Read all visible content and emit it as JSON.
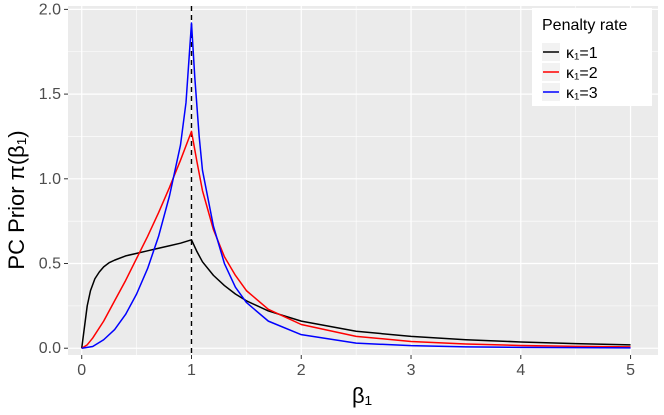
{
  "chart_data": {
    "type": "line",
    "ylabel": "PC Prior π(β₁)",
    "xlabel": "β₁",
    "xlim": [
      -0.125,
      5.25
    ],
    "ylim": [
      -0.04,
      2.02
    ],
    "x_ticks": [
      0,
      1,
      2,
      3,
      4,
      5
    ],
    "x_tick_labels": [
      "0",
      "1",
      "2",
      "3",
      "4",
      "5"
    ],
    "y_ticks": [
      0.0,
      0.5,
      1.0,
      1.5,
      2.0
    ],
    "y_tick_labels": [
      "0.0",
      "0.5",
      "1.0",
      "1.5",
      "2.0"
    ],
    "grid": true,
    "panel_background": "#ebebeb",
    "reference_line": {
      "x": 1,
      "style": "dashed",
      "color": "#000000"
    },
    "legend": {
      "title": "Penalty rate",
      "position": "top-right"
    },
    "series": [
      {
        "name": "κ₁=1",
        "color": "#000000",
        "points": [
          [
            0,
            0
          ],
          [
            0.02,
            0.1
          ],
          [
            0.05,
            0.25
          ],
          [
            0.08,
            0.34
          ],
          [
            0.12,
            0.41
          ],
          [
            0.16,
            0.45
          ],
          [
            0.2,
            0.48
          ],
          [
            0.25,
            0.505
          ],
          [
            0.3,
            0.52
          ],
          [
            0.4,
            0.545
          ],
          [
            0.5,
            0.56
          ],
          [
            0.6,
            0.575
          ],
          [
            0.7,
            0.59
          ],
          [
            0.8,
            0.605
          ],
          [
            0.9,
            0.62
          ],
          [
            1.0,
            0.64
          ],
          [
            1.05,
            0.57
          ],
          [
            1.1,
            0.51
          ],
          [
            1.2,
            0.43
          ],
          [
            1.3,
            0.37
          ],
          [
            1.4,
            0.32
          ],
          [
            1.5,
            0.28
          ],
          [
            1.7,
            0.22
          ],
          [
            2.0,
            0.16
          ],
          [
            2.5,
            0.1
          ],
          [
            3.0,
            0.07
          ],
          [
            3.5,
            0.05
          ],
          [
            4.0,
            0.037
          ],
          [
            4.5,
            0.027
          ],
          [
            5.0,
            0.02
          ]
        ]
      },
      {
        "name": "κ₁=2",
        "color": "#ff0000",
        "points": [
          [
            0,
            0
          ],
          [
            0.05,
            0.02
          ],
          [
            0.1,
            0.06
          ],
          [
            0.2,
            0.16
          ],
          [
            0.3,
            0.28
          ],
          [
            0.4,
            0.4
          ],
          [
            0.5,
            0.53
          ],
          [
            0.6,
            0.66
          ],
          [
            0.7,
            0.8
          ],
          [
            0.8,
            0.95
          ],
          [
            0.9,
            1.11
          ],
          [
            1.0,
            1.28
          ],
          [
            1.05,
            1.1
          ],
          [
            1.1,
            0.93
          ],
          [
            1.2,
            0.7
          ],
          [
            1.3,
            0.54
          ],
          [
            1.4,
            0.43
          ],
          [
            1.5,
            0.34
          ],
          [
            1.7,
            0.23
          ],
          [
            2.0,
            0.14
          ],
          [
            2.5,
            0.07
          ],
          [
            3.0,
            0.04
          ],
          [
            3.5,
            0.025
          ],
          [
            4.0,
            0.016
          ],
          [
            4.5,
            0.011
          ],
          [
            5.0,
            0.008
          ]
        ]
      },
      {
        "name": "κ₁=3",
        "color": "#0000ff",
        "points": [
          [
            0,
            0
          ],
          [
            0.1,
            0.01
          ],
          [
            0.2,
            0.05
          ],
          [
            0.3,
            0.11
          ],
          [
            0.4,
            0.2
          ],
          [
            0.5,
            0.32
          ],
          [
            0.6,
            0.47
          ],
          [
            0.7,
            0.66
          ],
          [
            0.8,
            0.9
          ],
          [
            0.9,
            1.2
          ],
          [
            0.95,
            1.45
          ],
          [
            1.0,
            1.92
          ],
          [
            1.03,
            1.6
          ],
          [
            1.07,
            1.25
          ],
          [
            1.1,
            1.05
          ],
          [
            1.2,
            0.72
          ],
          [
            1.3,
            0.5
          ],
          [
            1.4,
            0.36
          ],
          [
            1.5,
            0.27
          ],
          [
            1.7,
            0.16
          ],
          [
            2.0,
            0.08
          ],
          [
            2.5,
            0.03
          ],
          [
            3.0,
            0.015
          ],
          [
            3.5,
            0.008
          ],
          [
            4.0,
            0.005
          ],
          [
            5.0,
            0.002
          ]
        ]
      }
    ]
  }
}
